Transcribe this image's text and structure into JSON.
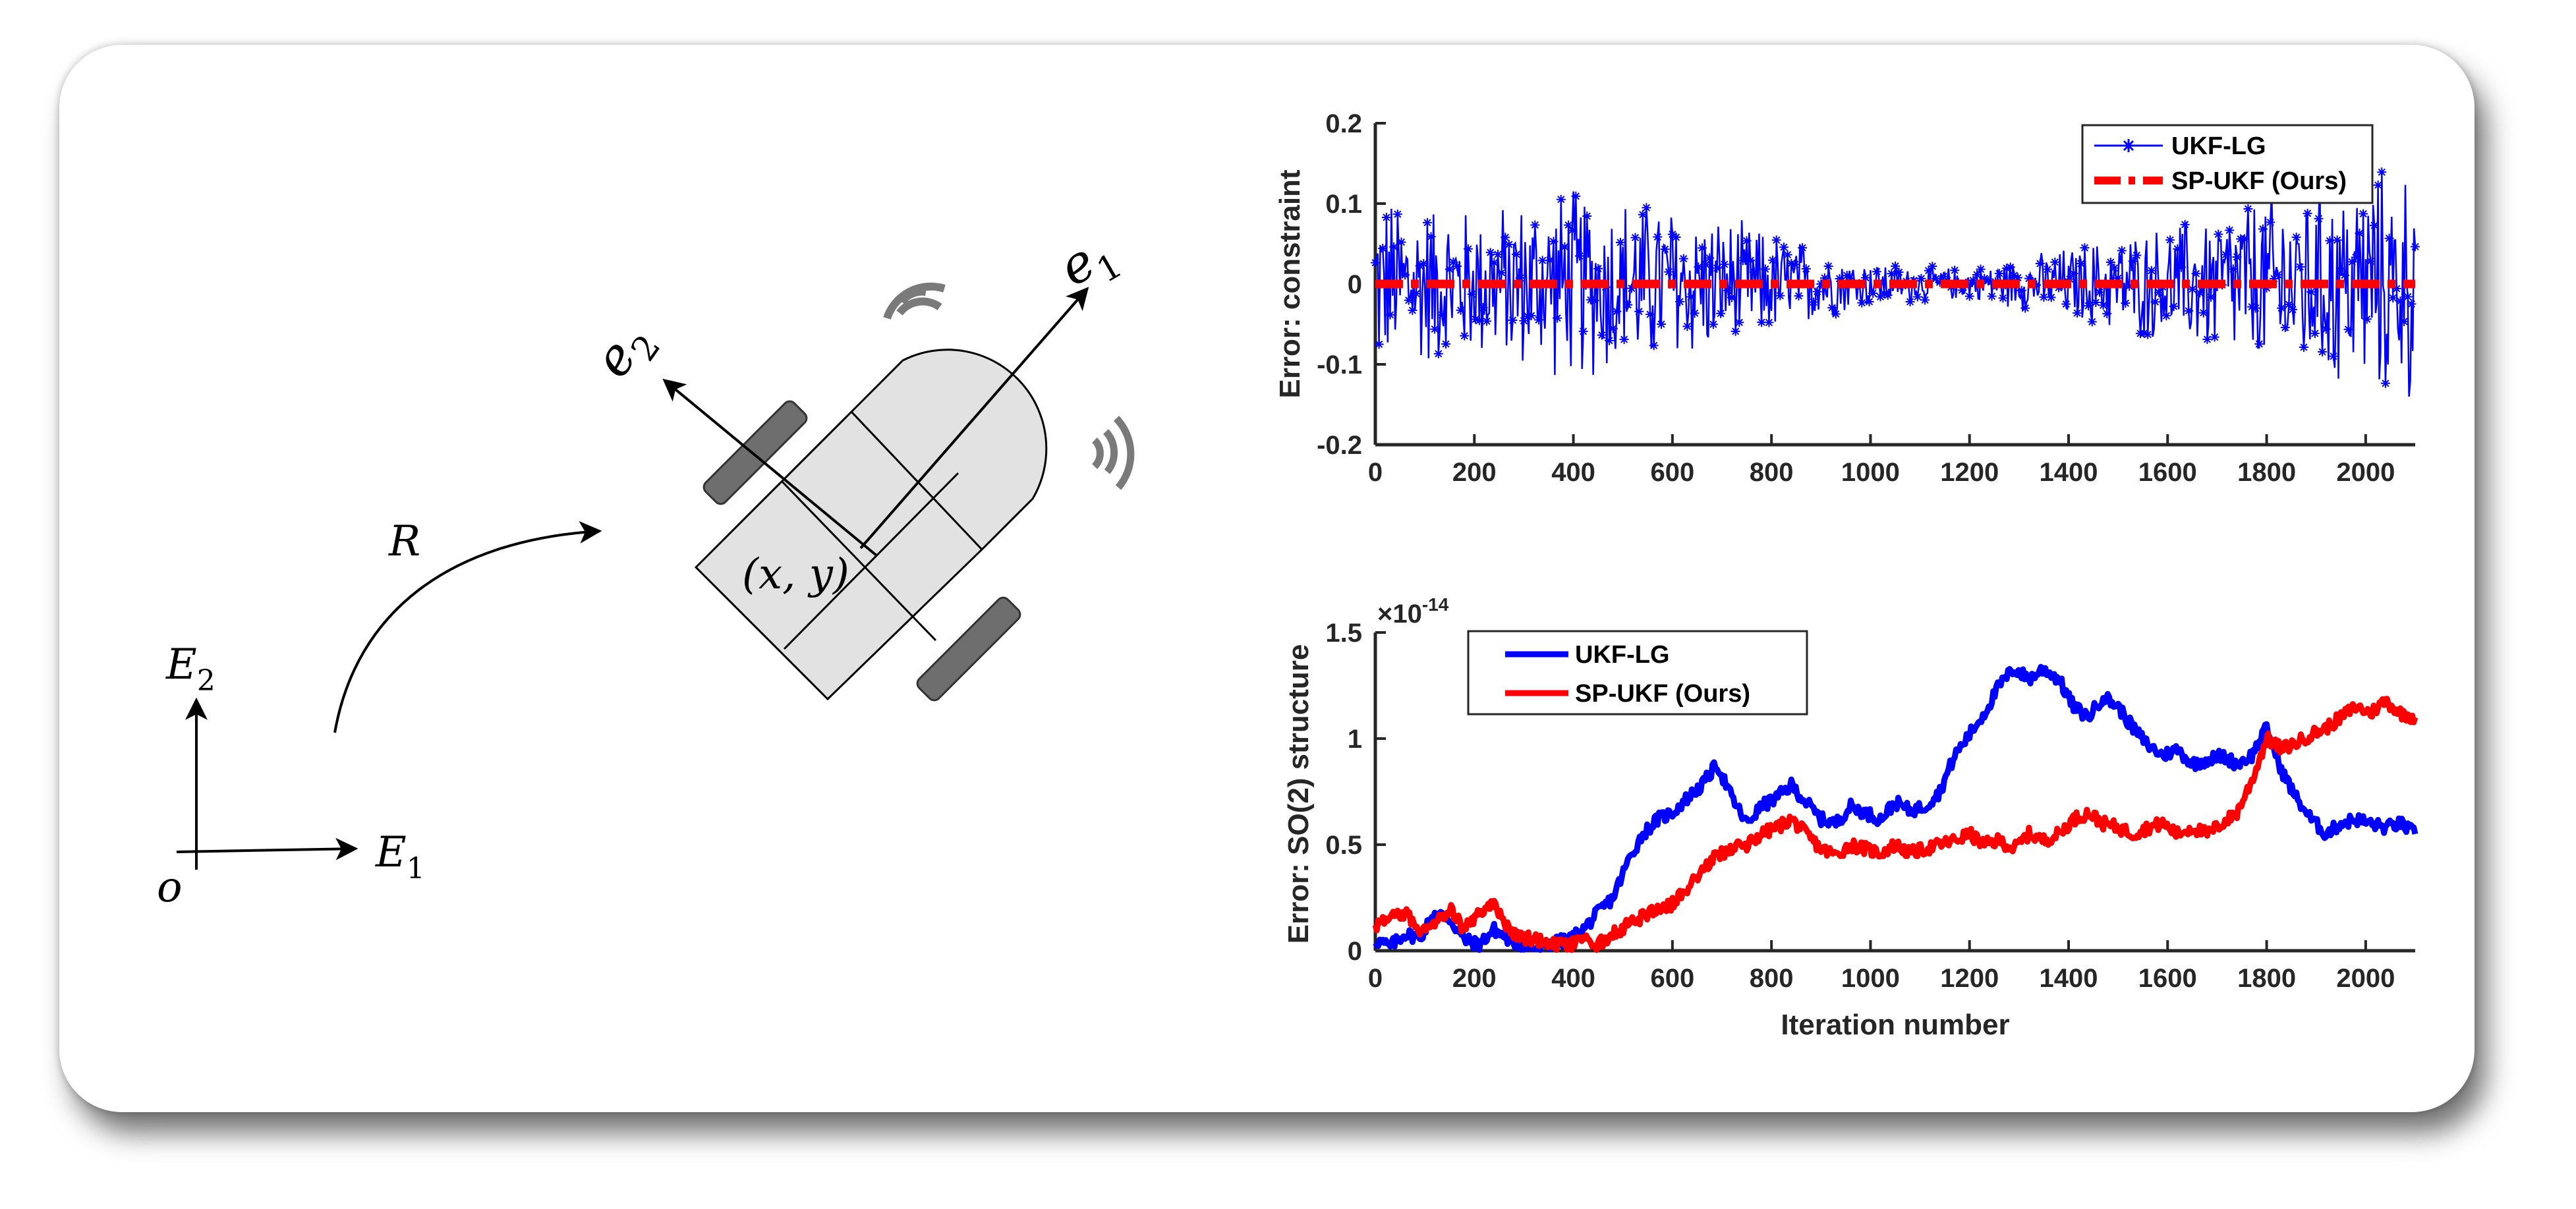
{
  "diagram": {
    "labels": {
      "e1": "e",
      "e1_sub": "1",
      "e2": "e",
      "e2_sub": "2",
      "R": "R",
      "xy": "(x, y)",
      "E1": "E",
      "E1_sub": "1",
      "E2": "E",
      "E2_sub": "2",
      "origin": "o"
    },
    "colors": {
      "robot_body": "#e2e2e2",
      "wheel": "#6e6e6e",
      "signal": "#7a7a7a"
    }
  },
  "chart_data": [
    {
      "type": "line",
      "ylabel": "Error: constraint",
      "xlabel": "",
      "xlim": [
        0,
        2100
      ],
      "ylim": [
        -0.2,
        0.2
      ],
      "xticks": [
        "0",
        "200",
        "400",
        "600",
        "800",
        "1000",
        "1200",
        "1400",
        "1600",
        "1800",
        "2000"
      ],
      "yticks": [
        "-0.2",
        "-0.1",
        "0",
        "0.1",
        "0.2"
      ],
      "legend_position": "top-right",
      "series": [
        {
          "name": "UKF-LG",
          "color": "#0000ff",
          "marker": "asterisk",
          "amplitude_profile": {
            "x": [
              0,
              200,
              400,
              600,
              800,
              1000,
              1200,
              1400,
              1600,
              1800,
              2000,
              2100
            ],
            "max_abs": [
              0.12,
              0.1,
              0.13,
              0.11,
              0.07,
              0.03,
              0.02,
              0.05,
              0.08,
              0.12,
              0.15,
              0.16
            ]
          }
        },
        {
          "name": "SP-UKF (Ours)",
          "color": "#ff0000",
          "style": "dash-dot",
          "values_constant": 0
        }
      ]
    },
    {
      "type": "line",
      "ylabel": "Error: SO(2) structure",
      "xlabel": "Iteration number",
      "exponent_label": "×10",
      "exponent_power": "-14",
      "xlim": [
        0,
        2100
      ],
      "ylim": [
        0,
        1.5
      ],
      "xticks": [
        "0",
        "200",
        "400",
        "600",
        "800",
        "1000",
        "1200",
        "1400",
        "1600",
        "1800",
        "2000"
      ],
      "yticks": [
        "0",
        "0.5",
        "1",
        "1.5"
      ],
      "legend_position": "top-left",
      "series": [
        {
          "name": "UKF-LG",
          "color": "#0000ff",
          "x": [
            0,
            30,
            60,
            90,
            120,
            150,
            180,
            210,
            240,
            270,
            300,
            330,
            360,
            390,
            420,
            450,
            480,
            510,
            540,
            570,
            600,
            630,
            660,
            690,
            720,
            750,
            780,
            810,
            840,
            870,
            900,
            930,
            960,
            990,
            1020,
            1050,
            1080,
            1110,
            1140,
            1170,
            1200,
            1230,
            1260,
            1290,
            1320,
            1350,
            1380,
            1410,
            1440,
            1470,
            1500,
            1530,
            1560,
            1590,
            1620,
            1650,
            1680,
            1710,
            1740,
            1770,
            1800,
            1830,
            1860,
            1890,
            1920,
            1950,
            1980,
            2010,
            2040,
            2070,
            2100
          ],
          "y": [
            0.05,
            0.02,
            0.08,
            0.06,
            0.18,
            0.15,
            0.05,
            0.03,
            0.1,
            0.05,
            0.02,
            0.01,
            0.04,
            0.05,
            0.1,
            0.18,
            0.25,
            0.42,
            0.55,
            0.62,
            0.65,
            0.72,
            0.78,
            0.88,
            0.72,
            0.6,
            0.68,
            0.72,
            0.78,
            0.7,
            0.62,
            0.6,
            0.68,
            0.65,
            0.62,
            0.7,
            0.66,
            0.68,
            0.75,
            0.92,
            1.02,
            1.12,
            1.25,
            1.33,
            1.28,
            1.33,
            1.28,
            1.15,
            1.1,
            1.2,
            1.15,
            1.05,
            0.97,
            0.92,
            0.95,
            0.88,
            0.9,
            0.92,
            0.88,
            0.92,
            1.05,
            0.85,
            0.72,
            0.62,
            0.55,
            0.6,
            0.62,
            0.6,
            0.58,
            0.6,
            0.55
          ]
        },
        {
          "name": "SP-UKF (Ours)",
          "color": "#ff0000",
          "x": [
            0,
            30,
            60,
            90,
            120,
            150,
            180,
            210,
            240,
            270,
            300,
            330,
            360,
            390,
            420,
            450,
            480,
            510,
            540,
            570,
            600,
            630,
            660,
            690,
            720,
            750,
            780,
            810,
            840,
            870,
            900,
            930,
            960,
            990,
            1020,
            1050,
            1080,
            1110,
            1140,
            1170,
            1200,
            1230,
            1260,
            1290,
            1320,
            1350,
            1380,
            1410,
            1440,
            1470,
            1500,
            1530,
            1560,
            1590,
            1620,
            1650,
            1680,
            1710,
            1740,
            1770,
            1800,
            1830,
            1860,
            1890,
            1920,
            1950,
            1980,
            2010,
            2040,
            2070,
            2100
          ],
          "y": [
            0.12,
            0.15,
            0.18,
            0.1,
            0.14,
            0.2,
            0.1,
            0.18,
            0.22,
            0.1,
            0.06,
            0.05,
            0.03,
            0.02,
            0.05,
            0.03,
            0.08,
            0.12,
            0.16,
            0.2,
            0.22,
            0.3,
            0.38,
            0.45,
            0.48,
            0.5,
            0.55,
            0.58,
            0.62,
            0.55,
            0.48,
            0.45,
            0.5,
            0.48,
            0.46,
            0.5,
            0.46,
            0.48,
            0.5,
            0.52,
            0.55,
            0.5,
            0.52,
            0.48,
            0.55,
            0.52,
            0.55,
            0.62,
            0.65,
            0.6,
            0.58,
            0.55,
            0.58,
            0.6,
            0.55,
            0.58,
            0.55,
            0.6,
            0.65,
            0.8,
            1.0,
            0.95,
            0.98,
            1.02,
            1.05,
            1.1,
            1.15,
            1.12,
            1.18,
            1.12,
            1.1
          ]
        }
      ]
    }
  ]
}
